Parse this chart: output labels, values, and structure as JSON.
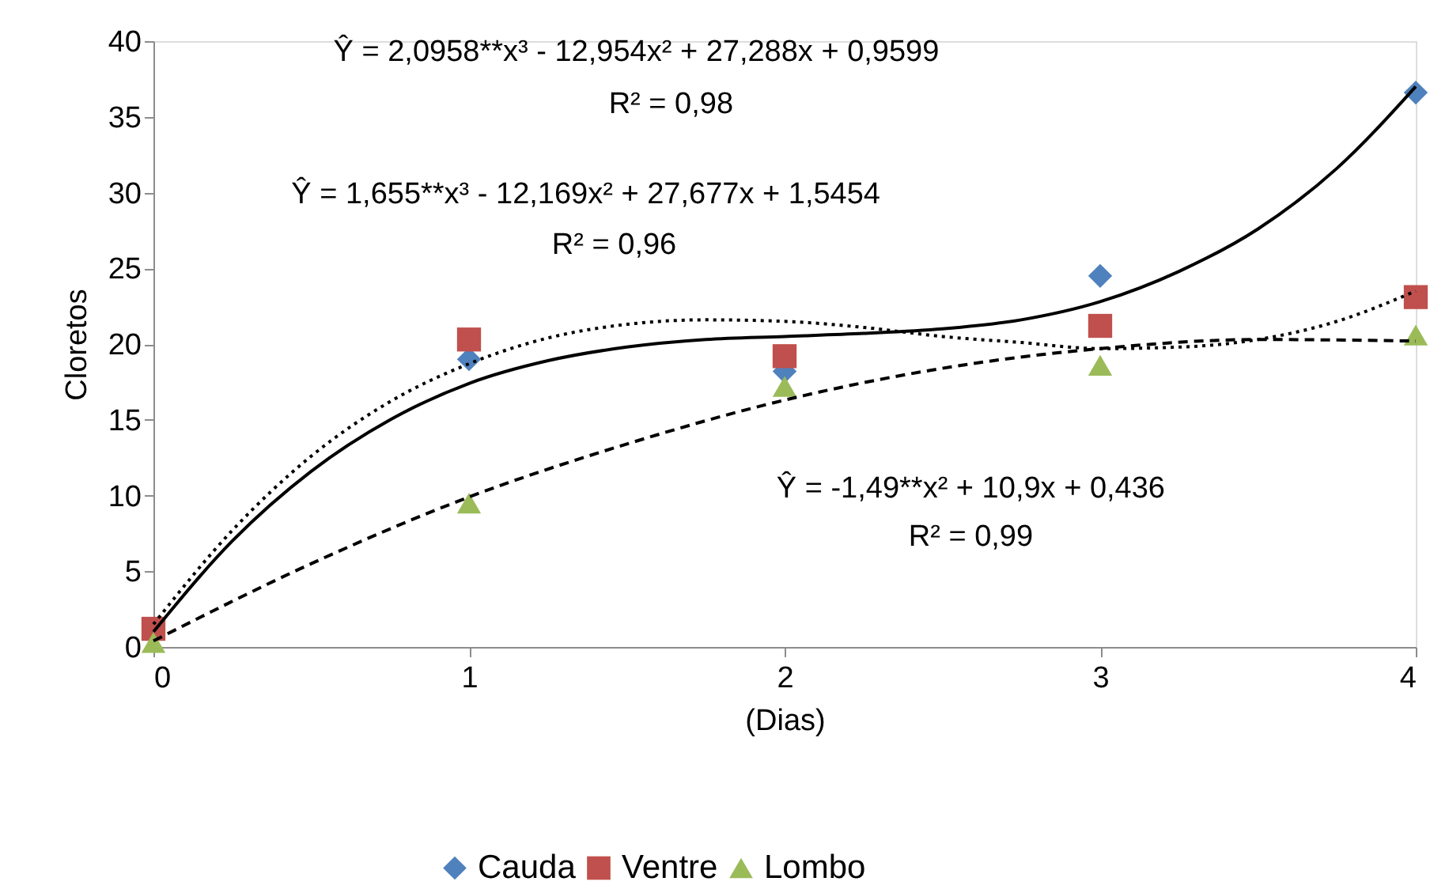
{
  "chart_data": {
    "type": "scatter",
    "xlabel": "(Dias)",
    "ylabel": "Cloretos",
    "x": [
      0,
      1,
      2,
      3,
      4
    ],
    "xlim": [
      0,
      4
    ],
    "xticks": [
      0,
      1,
      2,
      3,
      4
    ],
    "ylim": [
      0,
      40
    ],
    "yticks": [
      0,
      5,
      10,
      15,
      20,
      25,
      30,
      35,
      40
    ],
    "grid": false,
    "legend": "bottom",
    "series": [
      {
        "name": "Cauda",
        "color": "#4f81bd",
        "marker": "diamond",
        "values": [
          null,
          19.0,
          18.2,
          24.5,
          36.6
        ]
      },
      {
        "name": "Ventre",
        "color": "#c0504d",
        "marker": "square",
        "values": [
          1.2,
          20.3,
          19.2,
          21.2,
          23.1
        ]
      },
      {
        "name": "Lombo",
        "color": "#9bbb59",
        "marker": "triangle",
        "values": [
          0.3,
          9.5,
          17.2,
          18.6,
          20.6
        ]
      },
      {
        "type": "line",
        "color": "#000000",
        "line_style": "solid",
        "x": [
          0,
          0.25,
          0.5,
          0.75,
          1,
          1.25,
          1.5,
          1.75,
          2,
          2.25,
          2.5,
          2.75,
          3,
          3.25,
          3.5,
          3.75,
          4
        ],
        "values": [
          1.0,
          7.0,
          11.6,
          15.0,
          17.4,
          18.9,
          19.8,
          20.3,
          20.5,
          20.7,
          21.0,
          21.6,
          22.8,
          24.8,
          27.6,
          31.6,
          37.0
        ]
      },
      {
        "type": "line",
        "color": "#000000",
        "line_style": "dotted",
        "x": [
          0,
          0.25,
          0.5,
          0.75,
          1,
          1.25,
          1.5,
          1.75,
          2,
          2.25,
          2.5,
          2.75,
          3,
          3.25,
          3.5,
          3.75,
          4
        ],
        "values": [
          1.5,
          7.7,
          12.6,
          16.2,
          18.7,
          20.4,
          21.3,
          21.6,
          21.5,
          21.1,
          20.5,
          20.1,
          19.7,
          19.8,
          20.3,
          21.5,
          23.5
        ]
      },
      {
        "type": "line",
        "color": "#000000",
        "line_style": "dashed",
        "x": [
          0,
          0.5,
          1,
          1.5,
          2,
          2.5,
          3,
          3.5,
          4
        ],
        "values": [
          0.4,
          5.5,
          9.9,
          13.4,
          16.3,
          18.4,
          19.7,
          20.3,
          20.2
        ]
      }
    ],
    "annotations": [
      "Ŷ = 2,0958**x³ - 12,954x² + 27,288x + 0,9599",
      "R² = 0,98",
      "Ŷ = 1,655**x³ - 12,169x² + 27,677x + 1,5454",
      "R² = 0,96",
      "Ŷ = -1,49**x² + 10,9x + 0,436",
      "R² = 0,99"
    ]
  }
}
